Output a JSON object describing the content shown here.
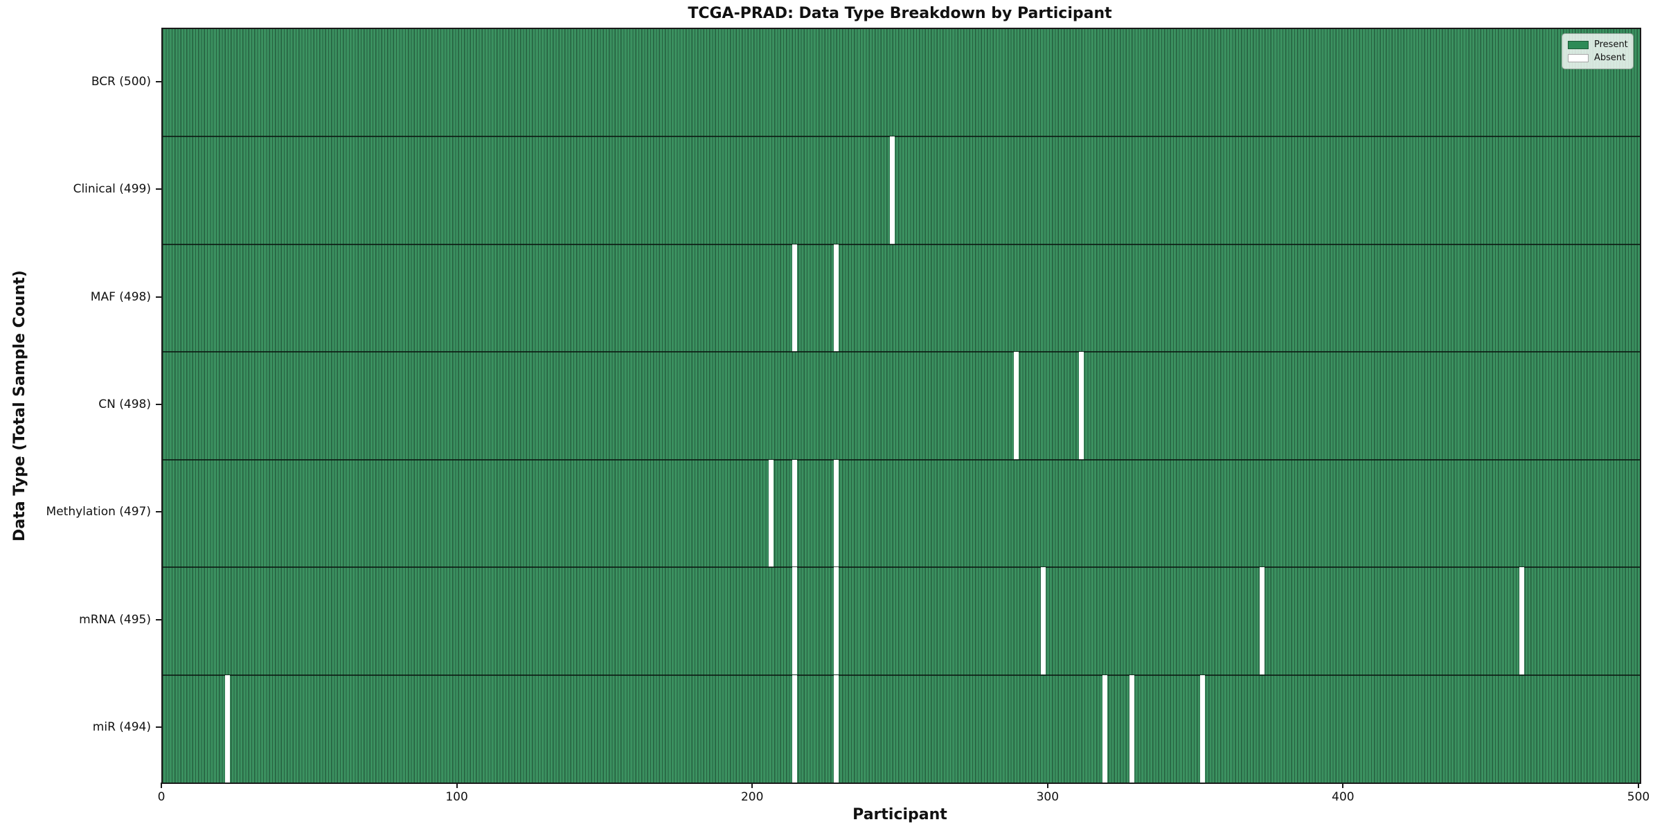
{
  "chart_data": {
    "type": "heatmap",
    "title": "TCGA-PRAD: Data Type Breakdown by Participant",
    "xlabel": "Participant",
    "ylabel": "Data Type (Total Sample Count)",
    "x_range": [
      0,
      500
    ],
    "x_ticks": [
      0,
      100,
      200,
      300,
      400,
      500
    ],
    "n_participants": 500,
    "grid": false,
    "rows": [
      {
        "name": "BCR",
        "label": "BCR (500)",
        "total_samples": 500,
        "absent_participants": []
      },
      {
        "name": "Clinical",
        "label": "Clinical (499)",
        "total_samples": 499,
        "absent_participants": [
          247
        ]
      },
      {
        "name": "MAF",
        "label": "MAF (498)",
        "total_samples": 498,
        "absent_participants": [
          214,
          228
        ]
      },
      {
        "name": "CN",
        "label": "CN (498)",
        "total_samples": 498,
        "absent_participants": [
          289,
          311
        ]
      },
      {
        "name": "Methylation",
        "label": "Methylation (497)",
        "total_samples": 497,
        "absent_participants": [
          206,
          214,
          228
        ]
      },
      {
        "name": "mRNA",
        "label": "mRNA (495)",
        "total_samples": 495,
        "absent_participants": [
          214,
          228,
          298,
          372,
          460
        ]
      },
      {
        "name": "miR",
        "label": "miR (494)",
        "total_samples": 494,
        "absent_participants": [
          22,
          214,
          228,
          319,
          328,
          352
        ]
      }
    ],
    "legend": {
      "position": "upper right",
      "entries": [
        {
          "label": "Present",
          "color": "#2e8b57"
        },
        {
          "label": "Absent",
          "color": "#ffffff"
        }
      ]
    },
    "colors": {
      "present_fill": "#3b9160",
      "present_edge": "#26603f",
      "absent": "#ffffff",
      "row_separator": "#12261a",
      "spine": "#1a1a1a"
    }
  }
}
